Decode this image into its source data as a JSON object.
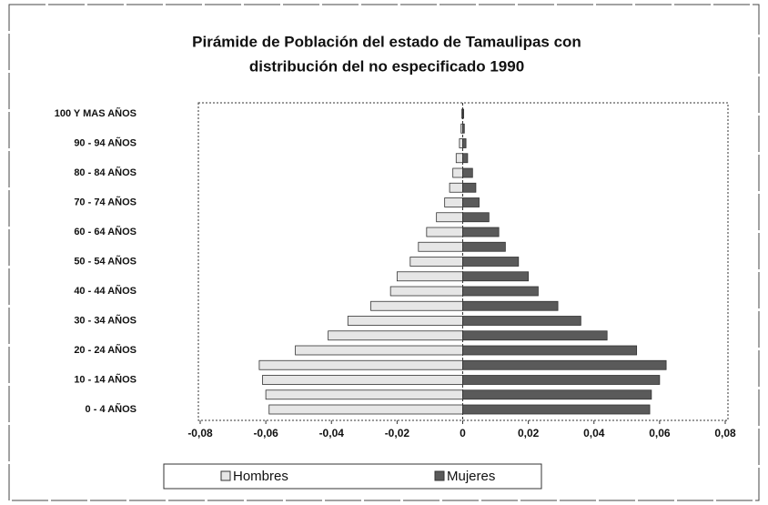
{
  "chart_data": {
    "type": "pyramid",
    "title": [
      "Pirámide de Población del estado de Tamaulipas con",
      "distribución del no especificado  1990"
    ],
    "categories": [
      "0 - 4 AÑOS",
      null,
      "10 - 14 AÑOS",
      null,
      "20 - 24 AÑOS",
      null,
      "30 - 34 AÑOS",
      null,
      "40 - 44 AÑOS",
      null,
      "50 - 54 AÑOS",
      null,
      "60 - 64 AÑOS",
      null,
      "70 - 74 AÑOS",
      null,
      "80 - 84 AÑOS",
      null,
      "90 - 94 AÑOS",
      null,
      "100 Y MAS AÑOS"
    ],
    "series": [
      {
        "name": "Hombres",
        "color": "#e6e6e6",
        "values": [
          -0.059,
          -0.06,
          -0.061,
          -0.062,
          -0.051,
          -0.041,
          -0.035,
          -0.028,
          -0.022,
          -0.02,
          -0.016,
          -0.0135,
          -0.011,
          -0.008,
          -0.0055,
          -0.004,
          -0.003,
          -0.002,
          -0.001,
          -0.0005,
          -0.0003
        ]
      },
      {
        "name": "Mujeres",
        "color": "#5a5a5a",
        "values": [
          0.057,
          0.0575,
          0.06,
          0.062,
          0.053,
          0.044,
          0.036,
          0.029,
          0.023,
          0.02,
          0.017,
          0.013,
          0.011,
          0.008,
          0.005,
          0.004,
          0.003,
          0.0015,
          0.001,
          0.0005,
          0.0003
        ]
      }
    ],
    "xlim": [
      -0.08,
      0.08
    ],
    "xticks": [
      {
        "value": -0.08,
        "label": "-0,08"
      },
      {
        "value": -0.06,
        "label": "-0,06"
      },
      {
        "value": -0.04,
        "label": "-0,04"
      },
      {
        "value": -0.02,
        "label": "-0,02"
      },
      0,
      {
        "value": 0.02,
        "label": "0,02"
      },
      {
        "value": 0.04,
        "label": "0,04"
      },
      {
        "value": 0.06,
        "label": "0,06"
      },
      {
        "value": 0.08,
        "label": "0,08"
      }
    ],
    "legend": "bottom"
  }
}
